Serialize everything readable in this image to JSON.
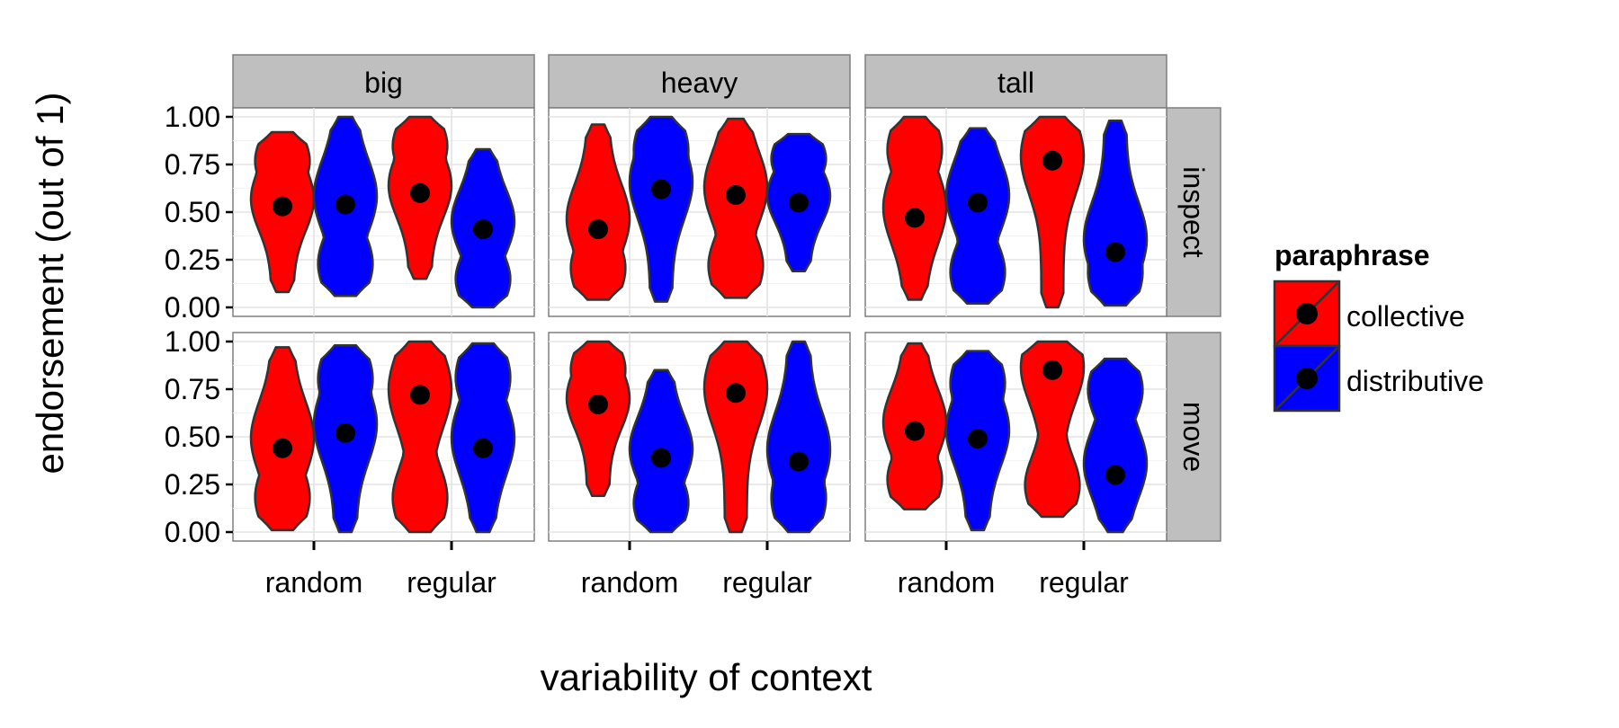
{
  "chart_data": {
    "type": "violin",
    "xlabel": "variability of context",
    "ylabel": "endorsement (out of 1)",
    "ylim": [
      0,
      1
    ],
    "y_ticks": [
      "0.00",
      "0.25",
      "0.50",
      "0.75",
      "1.00"
    ],
    "categories": [
      "random",
      "regular"
    ],
    "facet_columns": [
      "big",
      "heavy",
      "tall"
    ],
    "facet_rows": [
      "inspect",
      "move"
    ],
    "legend": {
      "title": "paraphrase",
      "position": "right",
      "entries": [
        {
          "name": "collective",
          "color": "#ff0000"
        },
        {
          "name": "distributive",
          "color": "#0000ff"
        }
      ]
    },
    "grid": true,
    "panels": [
      {
        "row": "inspect",
        "col": "big",
        "groups": [
          {
            "x": "random",
            "series": "collective",
            "mean": 0.53,
            "min": 0.08,
            "max": 0.92
          },
          {
            "x": "random",
            "series": "distributive",
            "mean": 0.54,
            "min": 0.06,
            "max": 1.0
          },
          {
            "x": "regular",
            "series": "collective",
            "mean": 0.6,
            "min": 0.15,
            "max": 1.0
          },
          {
            "x": "regular",
            "series": "distributive",
            "mean": 0.41,
            "min": 0.0,
            "max": 0.83
          }
        ]
      },
      {
        "row": "inspect",
        "col": "heavy",
        "groups": [
          {
            "x": "random",
            "series": "collective",
            "mean": 0.41,
            "min": 0.04,
            "max": 0.96
          },
          {
            "x": "random",
            "series": "distributive",
            "mean": 0.62,
            "min": 0.03,
            "max": 1.0
          },
          {
            "x": "regular",
            "series": "collective",
            "mean": 0.59,
            "min": 0.05,
            "max": 0.99
          },
          {
            "x": "regular",
            "series": "distributive",
            "mean": 0.55,
            "min": 0.19,
            "max": 0.91
          }
        ]
      },
      {
        "row": "inspect",
        "col": "tall",
        "groups": [
          {
            "x": "random",
            "series": "collective",
            "mean": 0.47,
            "min": 0.04,
            "max": 1.0
          },
          {
            "x": "random",
            "series": "distributive",
            "mean": 0.55,
            "min": 0.02,
            "max": 0.94
          },
          {
            "x": "regular",
            "series": "collective",
            "mean": 0.77,
            "min": 0.0,
            "max": 1.0
          },
          {
            "x": "regular",
            "series": "distributive",
            "mean": 0.29,
            "min": 0.01,
            "max": 0.98
          }
        ]
      },
      {
        "row": "move",
        "col": "big",
        "groups": [
          {
            "x": "random",
            "series": "collective",
            "mean": 0.44,
            "min": 0.01,
            "max": 0.97
          },
          {
            "x": "random",
            "series": "distributive",
            "mean": 0.52,
            "min": 0.0,
            "max": 0.98
          },
          {
            "x": "regular",
            "series": "collective",
            "mean": 0.72,
            "min": 0.0,
            "max": 1.0
          },
          {
            "x": "regular",
            "series": "distributive",
            "mean": 0.44,
            "min": 0.0,
            "max": 0.99
          }
        ]
      },
      {
        "row": "move",
        "col": "heavy",
        "groups": [
          {
            "x": "random",
            "series": "collective",
            "mean": 0.67,
            "min": 0.19,
            "max": 1.0
          },
          {
            "x": "random",
            "series": "distributive",
            "mean": 0.39,
            "min": 0.0,
            "max": 0.85
          },
          {
            "x": "regular",
            "series": "collective",
            "mean": 0.73,
            "min": 0.0,
            "max": 1.0
          },
          {
            "x": "regular",
            "series": "distributive",
            "mean": 0.37,
            "min": 0.0,
            "max": 1.0
          }
        ]
      },
      {
        "row": "move",
        "col": "tall",
        "groups": [
          {
            "x": "random",
            "series": "collective",
            "mean": 0.53,
            "min": 0.12,
            "max": 0.99
          },
          {
            "x": "random",
            "series": "distributive",
            "mean": 0.49,
            "min": 0.01,
            "max": 0.95
          },
          {
            "x": "regular",
            "series": "collective",
            "mean": 0.85,
            "min": 0.08,
            "max": 1.0
          },
          {
            "x": "regular",
            "series": "distributive",
            "mean": 0.3,
            "min": 0.0,
            "max": 0.91
          }
        ]
      }
    ]
  }
}
